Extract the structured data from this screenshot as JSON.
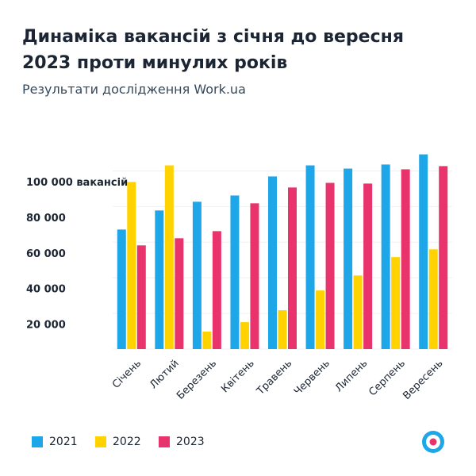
{
  "chart_data": {
    "type": "bar",
    "title": "Динаміка вакансій з січня до вересня 2023 проти минулих років",
    "subtitle": "Результати дослідження Work.ua",
    "categories": [
      "Січень",
      "Лютий",
      "Березень",
      "Квітень",
      "Травень",
      "Червень",
      "Липень",
      "Серпень",
      "Вересень"
    ],
    "series": [
      {
        "name": "2021",
        "color": "#1ea7e8",
        "values": [
          67100,
          77800,
          82700,
          86200,
          96900,
          103100,
          101300,
          103600,
          109300
        ]
      },
      {
        "name": "2022",
        "color": "#ffd200",
        "values": [
          93800,
          103100,
          9800,
          15100,
          21800,
          32900,
          41300,
          51600,
          56000
        ]
      },
      {
        "name": "2023",
        "color": "#e8336d",
        "values": [
          58200,
          62200,
          66200,
          81800,
          90700,
          93300,
          92900,
          100900,
          102700
        ]
      }
    ],
    "ylim": [
      0,
      110000
    ],
    "yticks": [
      {
        "value": 20000,
        "label": "20 000"
      },
      {
        "value": 40000,
        "label": "40 000"
      },
      {
        "value": 60000,
        "label": "60 000"
      },
      {
        "value": 80000,
        "label": "80 000"
      },
      {
        "value": 100000,
        "label": "100 000 вакансій"
      }
    ],
    "grid": true
  }
}
